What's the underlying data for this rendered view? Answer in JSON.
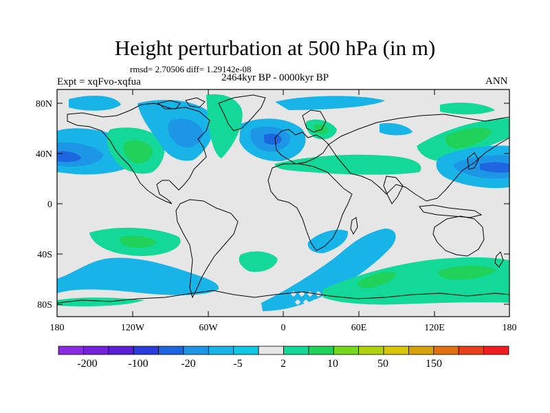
{
  "figure": {
    "title": "Height perturbation at 500 hPa (in m)",
    "stats": "rmsd= 2.70506 diff= 1.29142e-08",
    "period": "2464kyr BP - 0000kyr BP",
    "experiment": "Expt = xqFvo-xqfua",
    "season": "ANN"
  },
  "axes": {
    "lat_ticks": [
      "80N",
      "40N",
      "0",
      "40S",
      "80S"
    ],
    "lon_ticks": [
      "180",
      "120W",
      "60W",
      "0",
      "60E",
      "120E",
      "180"
    ]
  },
  "colorbar": {
    "labels": [
      "-200",
      "-100",
      "-20",
      "-5",
      "2",
      "10",
      "50",
      "150"
    ],
    "colors": [
      "#8a2be2",
      "#7322d9",
      "#5a1ed4",
      "#2a3ddb",
      "#1e66e0",
      "#1e96e6",
      "#18b4e8",
      "#10c8e6",
      "#e6e6e6",
      "#14d898",
      "#20d25a",
      "#74d81e",
      "#b0d20e",
      "#d8c40a",
      "#d8a00a",
      "#e07010",
      "#e6401c",
      "#f01e1e"
    ]
  },
  "palette": {
    "land_bg": "#e6e6e6",
    "light_blue": "#18b4e8",
    "mid_blue": "#1e96e6",
    "deep_blue": "#1e66e0",
    "teal_green": "#14d898",
    "green": "#20d25a",
    "yellow_green": "#74d81e"
  }
}
